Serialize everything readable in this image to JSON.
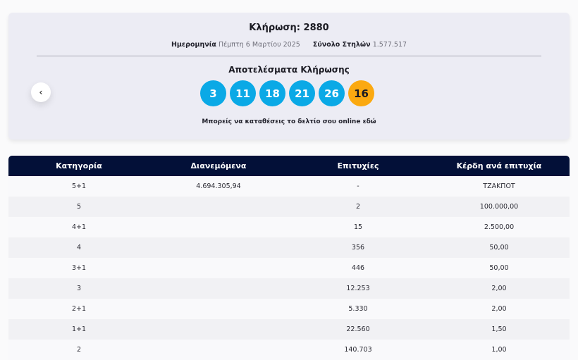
{
  "draw": {
    "title": "Κλήρωση: 2880",
    "date_label": "Ημερομηνία",
    "date_value": "Πέμπτη 6 Μαρτίου 2025",
    "columns_label": "Σύνολο Στηλών",
    "columns_value": "1.577.517",
    "results_title": "Αποτελέσματα Κλήρωσης",
    "numbers": [
      "3",
      "11",
      "18",
      "21",
      "26"
    ],
    "bonus": "16",
    "colors": {
      "ball": "#0aa9e6",
      "bonus": "#fba910",
      "header": "#031038"
    },
    "online_text": "Μπορείς να καταθέσεις το δελτίο σου online",
    "online_link": "εδώ",
    "prev_icon": "‹"
  },
  "table": {
    "headers": [
      "Κατηγορία",
      "Διανεμόμενα",
      "Επιτυχίες",
      "Κέρδη ανά επιτυχία"
    ],
    "rows": [
      [
        "5+1",
        "4.694.305,94",
        "-",
        "ΤΖΑΚΠΟΤ"
      ],
      [
        "5",
        "",
        "2",
        "100.000,00"
      ],
      [
        "4+1",
        "",
        "15",
        "2.500,00"
      ],
      [
        "4",
        "",
        "356",
        "50,00"
      ],
      [
        "3+1",
        "",
        "446",
        "50,00"
      ],
      [
        "3",
        "",
        "12.253",
        "2,00"
      ],
      [
        "2+1",
        "",
        "5.330",
        "2,00"
      ],
      [
        "1+1",
        "",
        "22.560",
        "1,50"
      ],
      [
        "2",
        "",
        "140.703",
        "1,00"
      ]
    ]
  }
}
